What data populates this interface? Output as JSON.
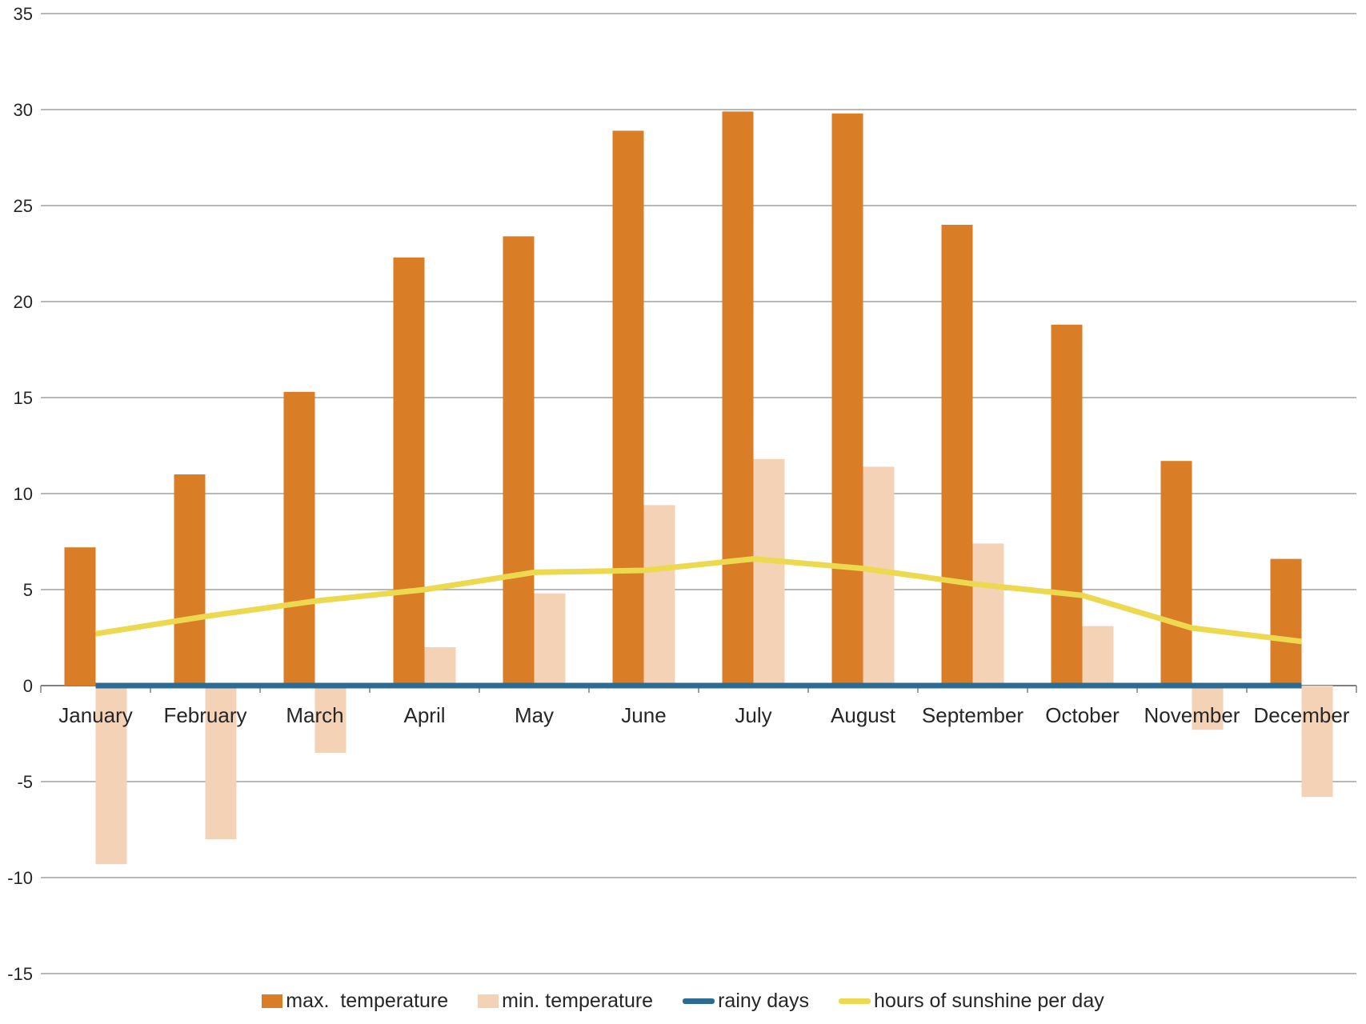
{
  "chart_data": {
    "type": "combo",
    "title": "",
    "categories": [
      "January",
      "February",
      "March",
      "April",
      "May",
      "June",
      "July",
      "August",
      "September",
      "October",
      "November",
      "December"
    ],
    "series": [
      {
        "name": "max.  temperature",
        "type": "bar",
        "color": "#D97E26",
        "values": [
          7.2,
          11.0,
          15.3,
          22.3,
          23.4,
          28.9,
          29.9,
          29.8,
          24.0,
          18.8,
          11.7,
          6.6
        ]
      },
      {
        "name": "min. temperature",
        "type": "bar",
        "color": "#F4D2B6",
        "values": [
          -9.3,
          -8.0,
          -3.5,
          2.0,
          4.8,
          9.4,
          11.8,
          11.4,
          7.4,
          3.1,
          -2.3,
          -5.8
        ]
      },
      {
        "name": "rainy days",
        "type": "line",
        "color": "#2C6C94",
        "values": [
          0,
          0,
          0,
          0,
          0,
          0,
          0,
          0,
          0,
          0,
          0,
          0
        ]
      },
      {
        "name": "hours of sunshine per day",
        "type": "line",
        "color": "#EDD94F",
        "values": [
          2.7,
          3.6,
          4.4,
          5.0,
          5.9,
          6.0,
          6.6,
          6.1,
          5.3,
          4.7,
          3.0,
          2.3
        ]
      }
    ],
    "ylim": [
      -15,
      35
    ],
    "y_ticks": [
      35,
      30,
      25,
      20,
      15,
      10,
      5,
      0,
      -5,
      -10,
      -15
    ],
    "xlabel": "",
    "ylabel": "",
    "grid": true,
    "legend_position": "bottom",
    "colors": {
      "grid": "#A0A0A0",
      "axis": "#7F7F7F",
      "text": "#262626"
    }
  }
}
